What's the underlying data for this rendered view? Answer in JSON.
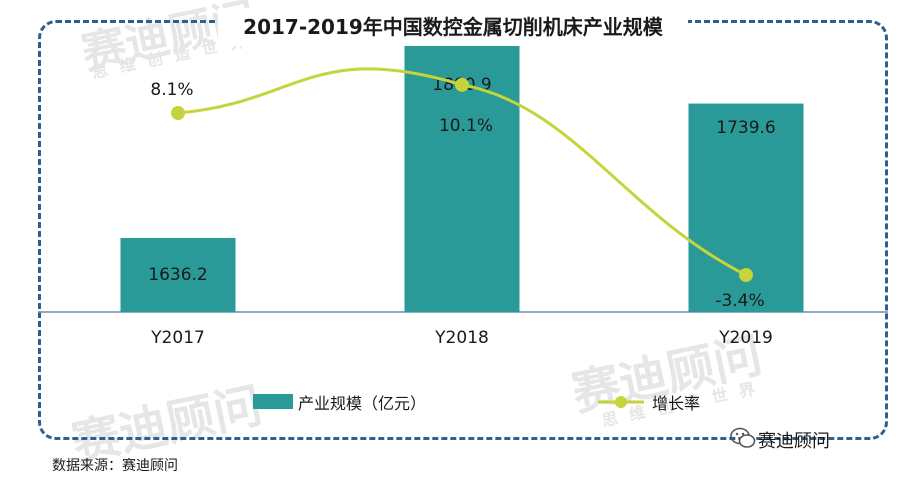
{
  "title": "2017-2019年中国数控金属切削机床产业规模",
  "watermark": {
    "brand": "赛迪顾问",
    "slogan": "思维创造世界"
  },
  "colors": {
    "bar": "#2a9a98",
    "line": "#c5d43a",
    "axis": "#6a8fb0",
    "frame": "#2f5f8a"
  },
  "chart_data": {
    "type": "bar",
    "categories": [
      "Y2017",
      "Y2018",
      "Y2019"
    ],
    "series": [
      {
        "name": "产业规模（亿元）",
        "type": "bar",
        "values": [
          1636.2,
          1800.9,
          1739.6
        ],
        "labels": [
          "1636.2",
          "1800.9",
          "1739.6"
        ]
      },
      {
        "name": "增长率",
        "type": "line",
        "values": [
          8.1,
          10.1,
          -3.4
        ],
        "labels": [
          "8.1%",
          "10.1%",
          "-3.4%"
        ]
      }
    ],
    "grid": false,
    "legend": "bottom"
  },
  "source": "数据来源：赛迪顾问",
  "brand": "赛迪顾问"
}
